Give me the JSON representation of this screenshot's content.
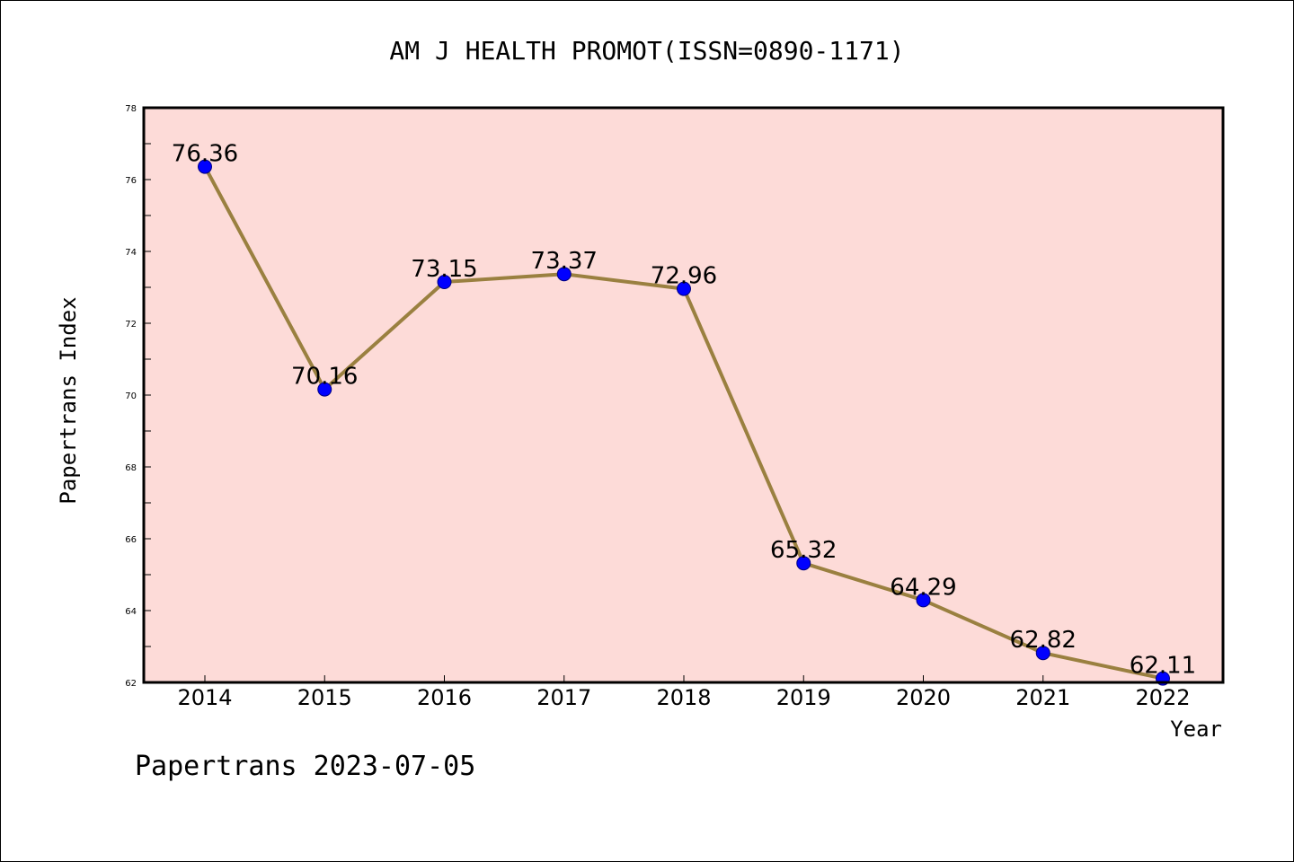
{
  "chart_data": {
    "type": "line",
    "title": "AM J HEALTH PROMOT(ISSN=0890-1171)",
    "xlabel": "Year",
    "ylabel": "Papertrans Index",
    "footer": "Papertrans 2023-07-05",
    "categories": [
      "2014",
      "2015",
      "2016",
      "2017",
      "2018",
      "2019",
      "2020",
      "2021",
      "2022"
    ],
    "values": [
      76.36,
      70.16,
      73.15,
      73.37,
      72.96,
      65.32,
      64.29,
      62.82,
      62.11
    ],
    "value_labels": [
      "76.36",
      "70.16",
      "73.15",
      "73.37",
      "72.96",
      "65.32",
      "64.29",
      "62.82",
      "62.11"
    ],
    "ylim": [
      62,
      78
    ],
    "yticks": [
      62,
      64,
      66,
      68,
      70,
      72,
      74,
      76,
      78
    ],
    "ytick_labels": [
      "62",
      "64",
      "66",
      "68",
      "70",
      "72",
      "74",
      "76",
      "78"
    ],
    "grid": false,
    "legend": "none",
    "colors": {
      "plot_background": "#fddbd8",
      "line": "#9a8040",
      "marker": "#0000ff",
      "marker_edge": "#000080",
      "axis": "#000000"
    }
  }
}
